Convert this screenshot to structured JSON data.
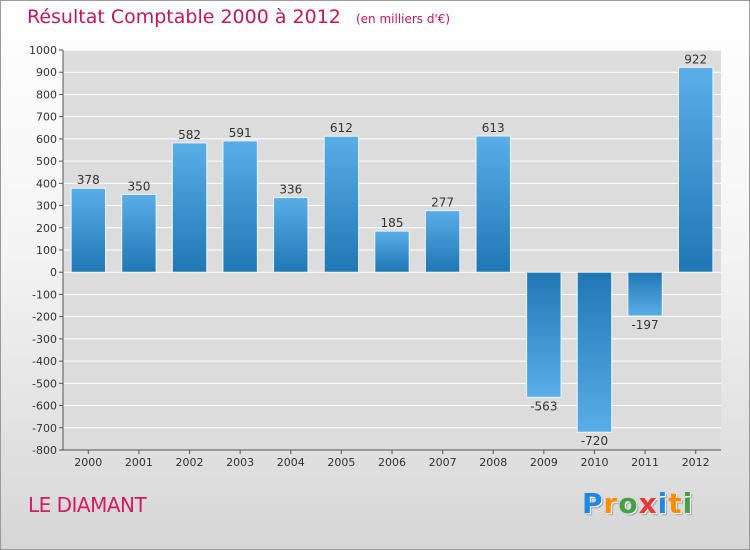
{
  "header": {
    "title": "Résultat Comptable 2000 à 2012",
    "unit": "(en milliers d'€)"
  },
  "footer": {
    "town": "LE DIAMANT",
    "logo_letters": [
      "P",
      "r",
      "o",
      "x",
      "i",
      "t",
      "i"
    ],
    "logo_colors": [
      "#1e88e5",
      "#fb8c00",
      "#43a047",
      "#e53935",
      "#1e88e5",
      "#fb8c00",
      "#43a047"
    ]
  },
  "chart_data": {
    "type": "bar",
    "title": "Résultat Comptable 2000 à 2012",
    "xlabel": "",
    "ylabel": "",
    "categories": [
      "2000",
      "2001",
      "2002",
      "2003",
      "2004",
      "2005",
      "2006",
      "2007",
      "2008",
      "2009",
      "2010",
      "2011",
      "2012"
    ],
    "values": [
      378,
      350,
      582,
      591,
      336,
      612,
      185,
      277,
      613,
      -563,
      -720,
      -197,
      922
    ],
    "value_labels": [
      "378",
      "350",
      "582",
      "591",
      "336",
      "612",
      "185",
      "277",
      "613",
      "-563",
      "-720",
      "-197",
      "922"
    ],
    "ylim": [
      -800,
      1000
    ],
    "yticks": [
      1000,
      900,
      800,
      700,
      600,
      500,
      400,
      300,
      200,
      100,
      0,
      -100,
      -200,
      -300,
      -400,
      -500,
      -600,
      -700,
      -800
    ],
    "grid": true,
    "legend": "none",
    "colors": {
      "bar_dark": "#1f77b4",
      "bar_light": "#5aaee8",
      "grid": "#ffffff",
      "text": "#333333"
    }
  }
}
